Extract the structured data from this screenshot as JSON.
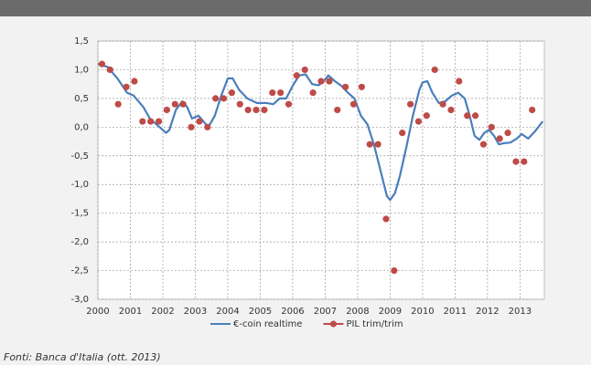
{
  "chart_data": {
    "type": "line",
    "xlim": [
      2000,
      2013.75
    ],
    "xticks": [
      2000,
      2001,
      2002,
      2003,
      2004,
      2005,
      2006,
      2007,
      2008,
      2009,
      2010,
      2011,
      2012,
      2013
    ],
    "ylim": [
      -3,
      1.5
    ],
    "yticks": [
      {
        "value": 1.5,
        "label": "1,5"
      },
      {
        "value": 1,
        "label": "1,0"
      },
      {
        "value": 0.5,
        "label": "0,5"
      },
      {
        "value": 0,
        "label": "0,0"
      },
      {
        "value": -0.5,
        "label": "-0,5"
      },
      {
        "value": -1,
        "label": "-1,0"
      },
      {
        "value": -1.5,
        "label": "-1,5"
      },
      {
        "value": -2,
        "label": "-2,0"
      },
      {
        "value": -2.5,
        "label": "-2,5"
      },
      {
        "value": -3,
        "label": "-3,0"
      }
    ],
    "grid": true,
    "source": "Fonti: Banca d'Italia (ott. 2013)",
    "series": [
      {
        "name": "€-coin realtime",
        "type": "line",
        "color": "#4a7ebb",
        "x": [
          2000.0,
          2000.3,
          2000.6,
          2000.9,
          2001.1,
          2001.4,
          2001.6,
          2001.9,
          2002.1,
          2002.2,
          2002.4,
          2002.6,
          2002.75,
          2002.9,
          2003.1,
          2003.25,
          2003.4,
          2003.6,
          2003.8,
          2004.0,
          2004.15,
          2004.35,
          2004.6,
          2004.9,
          2005.2,
          2005.4,
          2005.6,
          2005.8,
          2006.0,
          2006.2,
          2006.4,
          2006.6,
          2006.8,
          2006.95,
          2007.1,
          2007.3,
          2007.5,
          2007.7,
          2007.9,
          2008.1,
          2008.3,
          2008.5,
          2008.7,
          2008.9,
          2009.0,
          2009.15,
          2009.3,
          2009.5,
          2009.7,
          2009.9,
          2010.0,
          2010.15,
          2010.3,
          2010.5,
          2010.7,
          2010.9,
          2011.1,
          2011.3,
          2011.45,
          2011.6,
          2011.75,
          2011.9,
          2012.05,
          2012.2,
          2012.35,
          2012.5,
          2012.7,
          2012.9,
          2013.05,
          2013.25,
          2013.45,
          2013.7
        ],
        "values": [
          1.1,
          1.05,
          0.85,
          0.6,
          0.55,
          0.35,
          0.15,
          0.0,
          -0.1,
          -0.05,
          0.3,
          0.45,
          0.35,
          0.15,
          0.2,
          0.1,
          0.0,
          0.2,
          0.55,
          0.85,
          0.85,
          0.65,
          0.5,
          0.42,
          0.42,
          0.4,
          0.5,
          0.5,
          0.72,
          0.9,
          0.92,
          0.75,
          0.73,
          0.8,
          0.9,
          0.8,
          0.72,
          0.6,
          0.5,
          0.2,
          0.05,
          -0.3,
          -0.75,
          -1.2,
          -1.27,
          -1.15,
          -0.85,
          -0.35,
          0.2,
          0.65,
          0.78,
          0.8,
          0.6,
          0.42,
          0.45,
          0.55,
          0.6,
          0.5,
          0.2,
          -0.15,
          -0.22,
          -0.1,
          -0.05,
          -0.15,
          -0.3,
          -0.28,
          -0.27,
          -0.2,
          -0.12,
          -0.2,
          -0.08,
          0.1
        ]
      },
      {
        "name": "PIL trim/trim",
        "type": "scatter",
        "color": "#be4b48",
        "x": [
          2000.125,
          2000.375,
          2000.625,
          2000.875,
          2001.125,
          2001.375,
          2001.625,
          2001.875,
          2002.125,
          2002.375,
          2002.625,
          2002.875,
          2003.125,
          2003.375,
          2003.625,
          2003.875,
          2004.125,
          2004.375,
          2004.625,
          2004.875,
          2005.125,
          2005.375,
          2005.625,
          2005.875,
          2006.125,
          2006.375,
          2006.625,
          2006.875,
          2007.125,
          2007.375,
          2007.625,
          2007.875,
          2008.125,
          2008.375,
          2008.625,
          2008.875,
          2009.125,
          2009.375,
          2009.625,
          2009.875,
          2010.125,
          2010.375,
          2010.625,
          2010.875,
          2011.125,
          2011.375,
          2011.625,
          2011.875,
          2012.125,
          2012.375,
          2012.625,
          2012.875,
          2013.125,
          2013.375
        ],
        "values": [
          1.1,
          1.0,
          0.4,
          0.7,
          0.8,
          0.1,
          0.1,
          0.1,
          0.3,
          0.4,
          0.4,
          0.0,
          0.1,
          0.0,
          0.5,
          0.5,
          0.6,
          0.4,
          0.3,
          0.3,
          0.3,
          0.6,
          0.6,
          0.4,
          0.9,
          1.0,
          0.6,
          0.8,
          0.8,
          0.3,
          0.7,
          0.4,
          0.7,
          -0.3,
          -0.3,
          -1.6,
          -2.5,
          -0.1,
          0.4,
          0.1,
          0.2,
          1.0,
          0.4,
          0.3,
          0.8,
          0.2,
          0.2,
          -0.3,
          0.0,
          -0.2,
          -0.1,
          -0.6,
          -0.6,
          0.3
        ]
      }
    ]
  }
}
